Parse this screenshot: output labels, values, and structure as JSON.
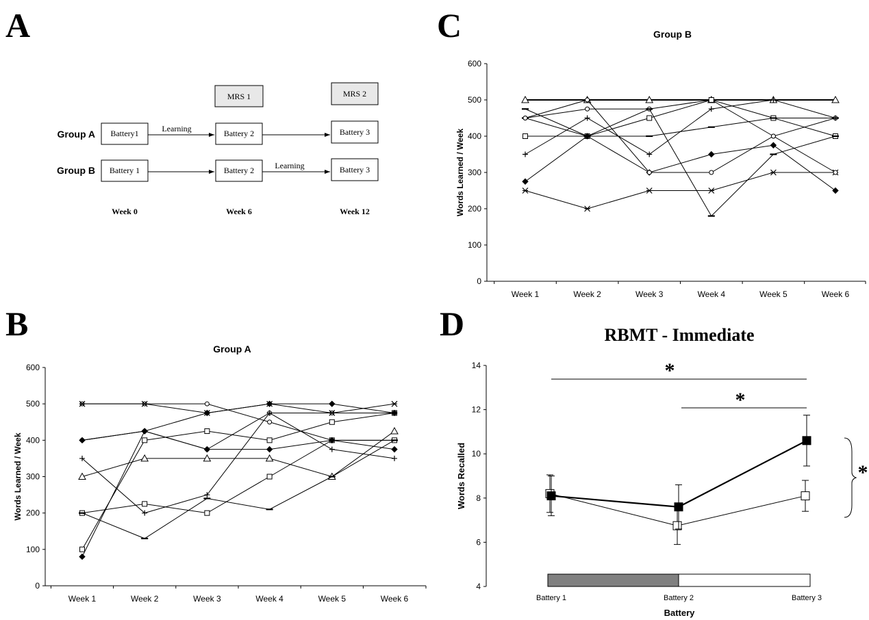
{
  "panel_labels": {
    "a": "A",
    "b": "B",
    "c": "C",
    "d": "D"
  },
  "diagram_a": {
    "mrs1": "MRS 1",
    "mrs2": "MRS 2",
    "group_a": "Group A",
    "group_b": "Group B",
    "a_battery1": "Battery1",
    "a_battery2": "Battery 2",
    "a_battery3": "Battery 3",
    "b_battery1": "Battery 1",
    "b_battery2": "Battery 2",
    "b_battery3": "Battery 3",
    "learning_a": "Learning",
    "learning_b": "Learning",
    "week0": "Week 0",
    "week6": "Week 6",
    "week12": "Week 12"
  },
  "chart_data": [
    {
      "id": "B",
      "type": "line",
      "title": "Group A",
      "xlabel": "",
      "ylabel": "Words Learned / Week",
      "categories": [
        "Week 1",
        "Week 2",
        "Week 3",
        "Week 4",
        "Week 5",
        "Week 6"
      ],
      "ylim": [
        0,
        600
      ],
      "yticks": [
        0,
        100,
        200,
        300,
        400,
        500,
        600
      ],
      "series": [
        {
          "marker": "circle",
          "values": [
            500,
            500,
            500,
            450,
            400,
            400
          ]
        },
        {
          "marker": "circle",
          "values": [
            400,
            425,
            375,
            475,
            475,
            475
          ]
        },
        {
          "marker": "triangle",
          "values": [
            300,
            350,
            350,
            350,
            300,
            425
          ]
        },
        {
          "marker": "square",
          "values": [
            200,
            225,
            200,
            300,
            400,
            400
          ]
        },
        {
          "marker": "square",
          "values": [
            100,
            400,
            425,
            400,
            450,
            475
          ]
        },
        {
          "marker": "diamond",
          "values": [
            80,
            425,
            375,
            375,
            400,
            375
          ]
        },
        {
          "marker": "plus",
          "values": [
            350,
            200,
            250,
            475,
            375,
            350
          ]
        },
        {
          "marker": "dash",
          "values": [
            200,
            130,
            240,
            210,
            300,
            400
          ]
        },
        {
          "marker": "star",
          "values": [
            500,
            500,
            475,
            500,
            475,
            500
          ]
        },
        {
          "marker": "diamond",
          "values": [
            400,
            425,
            475,
            500,
            500,
            475
          ]
        }
      ]
    },
    {
      "id": "C",
      "type": "line",
      "title": "Group B",
      "xlabel": "",
      "ylabel": "Words Learned / Week",
      "categories": [
        "Week 1",
        "Week 2",
        "Week 3",
        "Week 4",
        "Week 5",
        "Week 6"
      ],
      "ylim": [
        0,
        600
      ],
      "yticks": [
        0,
        100,
        200,
        300,
        400,
        500,
        600
      ],
      "series": [
        {
          "marker": "triangle",
          "bold": true,
          "values": [
            500,
            500,
            500,
            500,
            500,
            500
          ]
        },
        {
          "marker": "circle",
          "values": [
            450,
            475,
            475,
            500,
            400,
            450
          ]
        },
        {
          "marker": "square",
          "values": [
            400,
            400,
            450,
            500,
            450,
            400
          ]
        },
        {
          "marker": "dash",
          "values": [
            475,
            400,
            400,
            425,
            450,
            450
          ]
        },
        {
          "marker": "plus",
          "values": [
            350,
            450,
            350,
            475,
            500,
            450
          ]
        },
        {
          "marker": "diamond",
          "values": [
            275,
            400,
            300,
            350,
            375,
            250
          ]
        },
        {
          "marker": "star",
          "values": [
            250,
            200,
            250,
            250,
            300,
            300
          ]
        },
        {
          "marker": "dash",
          "values": [
            450,
            400,
            475,
            180,
            350,
            400
          ]
        },
        {
          "marker": "circle",
          "values": [
            450,
            500,
            300,
            300,
            400,
            300
          ]
        }
      ]
    },
    {
      "id": "D",
      "type": "line",
      "title": "RBMT - Immediate",
      "xlabel": "Battery",
      "ylabel": "Words Recalled",
      "categories": [
        "Battery 1",
        "Battery 2",
        "Battery 3"
      ],
      "ylim": [
        4,
        14
      ],
      "yticks": [
        4,
        6,
        8,
        10,
        12,
        14
      ],
      "series": [
        {
          "marker": "filled-square",
          "values": [
            8.1,
            7.6,
            10.6
          ],
          "error": [
            0.9,
            1.0,
            1.15
          ]
        },
        {
          "marker": "open-square",
          "values": [
            8.2,
            6.75,
            8.1
          ],
          "error": [
            0.85,
            0.85,
            0.7
          ]
        }
      ],
      "significance": "*",
      "bars": {
        "gray": "Battery 1 – Battery 2",
        "white": "Battery 2 – Battery 3"
      }
    }
  ]
}
